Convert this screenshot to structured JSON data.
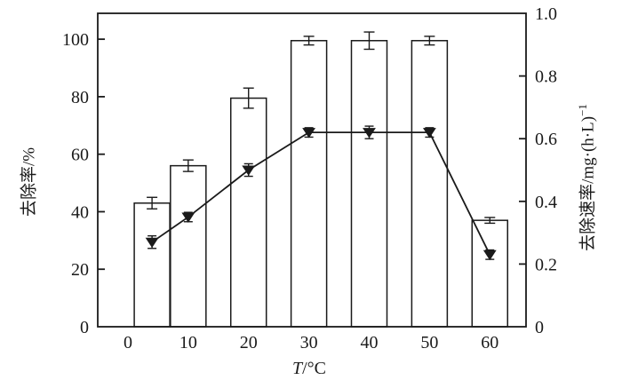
{
  "figure": {
    "background": "#ffffff",
    "ink_color": "#1a1a1a",
    "legend": "none",
    "title": ""
  },
  "chart_data": {
    "type": "bar",
    "subtype": "combo-bar-line-dual-axis",
    "x": [
      4,
      10,
      20,
      30,
      40,
      50,
      60
    ],
    "xlabel": "T/°C",
    "xlabel_italic": "T",
    "xlabel_rest": "/°C",
    "x_tick_labels": [
      "0",
      "10",
      "20",
      "30",
      "40",
      "50",
      "60"
    ],
    "x_tick_values": [
      0,
      10,
      20,
      30,
      40,
      50,
      60
    ],
    "series": [
      {
        "name": "去除率 (removal rate, bars)",
        "type": "bar",
        "axis": "left",
        "values": [
          43,
          56,
          79.5,
          99.5,
          99.5,
          99.5,
          37
        ],
        "errors": [
          2,
          2,
          3.5,
          1.5,
          3,
          1.5,
          1
        ],
        "fill": "#ffffff",
        "stroke": "#1a1a1a"
      },
      {
        "name": "去除速率 (removal velocity, line)",
        "type": "line",
        "axis": "right",
        "marker": "triangle-down-filled",
        "values": [
          0.27,
          0.35,
          0.5,
          0.62,
          0.62,
          0.62,
          0.23
        ],
        "errors": [
          0.02,
          0.015,
          0.02,
          0.015,
          0.02,
          0.015,
          0.015
        ],
        "stroke": "#1a1a1a"
      }
    ],
    "left_axis": {
      "label": "去除率/%",
      "tick_labels": [
        "0",
        "20",
        "40",
        "60",
        "80",
        "100"
      ],
      "tick_values": [
        0,
        20,
        40,
        60,
        80,
        100
      ],
      "range": [
        0,
        109
      ]
    },
    "right_axis": {
      "label": "去除速率/mg·(h·L)⁻¹",
      "label_main": "去除速率/mg·(h·L)",
      "label_sup": "−1",
      "tick_labels": [
        "0",
        "0.2",
        "0.4",
        "0.6",
        "0.8",
        "1.0"
      ],
      "tick_values": [
        0,
        0.2,
        0.4,
        0.6,
        0.8,
        1.0
      ],
      "range": [
        0,
        1.0
      ]
    },
    "grid": false,
    "legend_position": "none"
  }
}
